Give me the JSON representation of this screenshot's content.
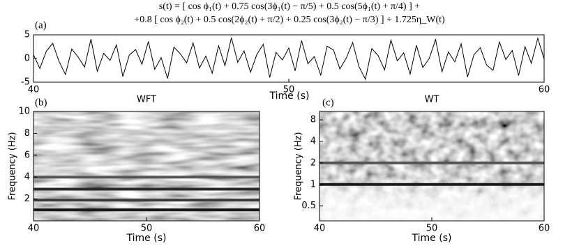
{
  "chart_data": [
    {
      "type": "line",
      "panel_label": "(a)",
      "title": [
        "s(t) = [ cos ϕ₁(t) + 0.75 cos(3ϕ₁(t) − π/5) + 0.5 cos(5ϕ₁(t) + π/4) ] +",
        "+0.8 [ cos ϕ₂(t) + 0.5 cos(2ϕ₂(t) + π/2) + 0.25 cos(3ϕ₂(t) − π/3) ] + 1.725η_W(t)"
      ],
      "xlabel": "Time (s)",
      "color": "#000000",
      "x": [
        40,
        40.25,
        40.5,
        40.75,
        41,
        41.25,
        41.5,
        41.75,
        42,
        42.25,
        42.5,
        42.75,
        43,
        43.25,
        43.5,
        43.75,
        44,
        44.25,
        44.5,
        44.75,
        45,
        45.25,
        45.5,
        45.75,
        46,
        46.25,
        46.5,
        46.75,
        47,
        47.25,
        47.5,
        47.75,
        48,
        48.25,
        48.5,
        48.75,
        49,
        49.25,
        49.5,
        49.75,
        50,
        50.25,
        50.5,
        50.75,
        51,
        51.25,
        51.5,
        51.75,
        52,
        52.25,
        52.5,
        52.75,
        53,
        53.25,
        53.5,
        53.75,
        54,
        54.25,
        54.5,
        54.75,
        55,
        55.25,
        55.5,
        55.75,
        56,
        56.25,
        56.5,
        56.75,
        57,
        57.25,
        57.5,
        57.75,
        58,
        58.25,
        58.5,
        58.75,
        59,
        59.25,
        59.5,
        59.75,
        60
      ],
      "values": [
        0.8,
        -2.1,
        1.5,
        3.2,
        -0.6,
        -3.4,
        2.0,
        0.3,
        -1.8,
        4.1,
        -2.7,
        1.1,
        -0.4,
        2.9,
        -3.8,
        0.7,
        1.9,
        -1.2,
        3.6,
        -2.3,
        0.2,
        -4.2,
        2.4,
        1.0,
        -0.9,
        3.3,
        -2.0,
        0.5,
        -3.1,
        2.7,
        -1.5,
        4.4,
        -0.8,
        1.6,
        -2.9,
        0.9,
        3.0,
        -4.0,
        1.3,
        -0.3,
        2.2,
        -2.6,
        3.8,
        -1.1,
        0.4,
        -3.5,
        2.6,
        1.8,
        -2.2,
        0.1,
        3.4,
        -1.7,
        -4.4,
        2.1,
        0.6,
        -2.4,
        3.9,
        -0.5,
        1.2,
        -3.3,
        2.8,
        -1.9,
        0.0,
        4.0,
        -2.8,
        1.4,
        -0.7,
        3.1,
        -3.9,
        0.8,
        2.3,
        -1.4,
        -2.5,
        3.5,
        -0.2,
        1.7,
        -3.6,
        2.5,
        -1.0,
        4.3,
        -0.1
      ],
      "xlim": [
        40,
        60
      ],
      "xticks": [
        40,
        50,
        60
      ],
      "ylim": [
        -5,
        5
      ],
      "yticks": [
        -5,
        0,
        5
      ]
    },
    {
      "type": "heatmap",
      "panel_label": "(b)",
      "title": "WFT",
      "xlabel": "Time (s)",
      "ylabel": "Frequency (Hz)",
      "x": [
        40,
        60
      ],
      "series": [
        {
          "color": "#1a1a1a",
          "values": [
            1,
            1
          ]
        },
        {
          "color": "#3a3a3a",
          "values": [
            1.9,
            1.9
          ]
        },
        {
          "color": "#2a2a2a",
          "values": [
            2.9,
            2.9
          ]
        },
        {
          "color": "#555555",
          "values": [
            4,
            4
          ]
        }
      ],
      "xlim": [
        40,
        60
      ],
      "xticks": [
        40,
        50,
        60
      ],
      "ylim": [
        0,
        10
      ],
      "yticks": [
        2,
        4,
        6,
        8,
        10
      ]
    },
    {
      "type": "heatmap",
      "panel_label": "(c)",
      "title": "WT",
      "xlabel": "Time (s)",
      "ylabel": "Frequency (Hz)",
      "yscale": "log",
      "x": [
        40,
        60
      ],
      "series": [
        {
          "color": "#1a1a1a",
          "values": [
            1,
            1
          ]
        },
        {
          "color": "#555555",
          "values": [
            2,
            2
          ]
        }
      ],
      "xlim": [
        40,
        60
      ],
      "xticks": [
        40,
        50,
        60
      ],
      "ylim": [
        0.31,
        10.5
      ],
      "yticks": [
        0.5,
        1,
        2,
        4,
        8
      ]
    }
  ]
}
